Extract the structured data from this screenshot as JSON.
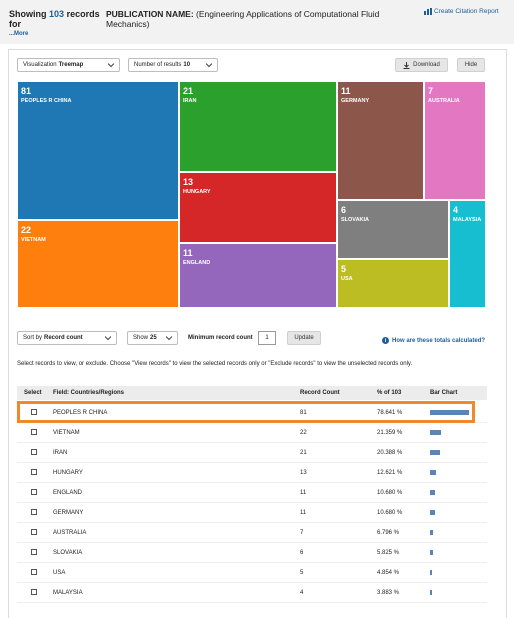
{
  "header": {
    "showing_prefix": "Showing",
    "record_count": "103",
    "showing_suffix": "records for",
    "more_link": "...More",
    "pub_label": "PUBLICATION NAME:",
    "pub_value": "(Engineering Applications of Computational Fluid Mechanics)",
    "citation_link": "Create Citation Report"
  },
  "toolbar": {
    "visualization_label": "Visualization",
    "visualization_value": "Treemap",
    "results_label": "Number of results",
    "results_value": "10",
    "download_label": "Download",
    "hide_label": "Hide"
  },
  "treemap": {
    "colors": {
      "china": "#1f77b4",
      "iran": "#2ca02c",
      "germany": "#8c564b",
      "australia": "#e377c2",
      "hungary": "#d62728",
      "vietnam": "#ff7f0e",
      "slovakia": "#7f7f7f",
      "malaysia": "#17becf",
      "england": "#9467bd",
      "usa": "#bcbd22"
    },
    "tiles": [
      {
        "id": "china",
        "value": "81",
        "label": "PEOPLES R CHINA"
      },
      {
        "id": "iran",
        "value": "21",
        "label": "IRAN"
      },
      {
        "id": "germany",
        "value": "11",
        "label": "GERMANY"
      },
      {
        "id": "australia",
        "value": "7",
        "label": "AUSTRALIA"
      },
      {
        "id": "hungary",
        "value": "13",
        "label": "HUNGARY"
      },
      {
        "id": "vietnam",
        "value": "22",
        "label": "VIETNAM"
      },
      {
        "id": "slovakia",
        "value": "6",
        "label": "SLOVAKIA"
      },
      {
        "id": "malaysia",
        "value": "4",
        "label": "MALAYSIA"
      },
      {
        "id": "england",
        "value": "11",
        "label": "ENGLAND"
      },
      {
        "id": "usa",
        "value": "5",
        "label": "USA"
      }
    ]
  },
  "controls": {
    "sort_label": "Sort by",
    "sort_value": "Record count",
    "show_label": "Show",
    "show_value": "25",
    "min_label": "Minimum record count",
    "min_value": "1",
    "update_label": "Update",
    "how_link": "How are these totals calculated?"
  },
  "instructions": "Select records to view, or exclude. Choose \"View records\" to view the selected records only or \"Exclude records\" to view the unselected records only.",
  "table": {
    "headers": {
      "select": "Select",
      "field": "Field: Countries/Regions",
      "count": "Record Count",
      "pct": "% of 103",
      "bar": "Bar Chart"
    },
    "rows": [
      {
        "field": "PEOPLES R CHINA",
        "count": "81",
        "pct": "78.641 %",
        "share": 0.78641
      },
      {
        "field": "VIETNAM",
        "count": "22",
        "pct": "21.359 %",
        "share": 0.21359
      },
      {
        "field": "IRAN",
        "count": "21",
        "pct": "20.388 %",
        "share": 0.20388
      },
      {
        "field": "HUNGARY",
        "count": "13",
        "pct": "12.621 %",
        "share": 0.12621
      },
      {
        "field": "ENGLAND",
        "count": "11",
        "pct": "10.680 %",
        "share": 0.1068
      },
      {
        "field": "GERMANY",
        "count": "11",
        "pct": "10.680 %",
        "share": 0.1068
      },
      {
        "field": "AUSTRALIA",
        "count": "7",
        "pct": "6.796 %",
        "share": 0.06796
      },
      {
        "field": "SLOVAKIA",
        "count": "6",
        "pct": "5.825 %",
        "share": 0.05825
      },
      {
        "field": "USA",
        "count": "5",
        "pct": "4.854 %",
        "share": 0.04854
      },
      {
        "field": "MALAYSIA",
        "count": "4",
        "pct": "3.883 %",
        "share": 0.03883
      }
    ],
    "highlight_color": "#f0892c"
  }
}
